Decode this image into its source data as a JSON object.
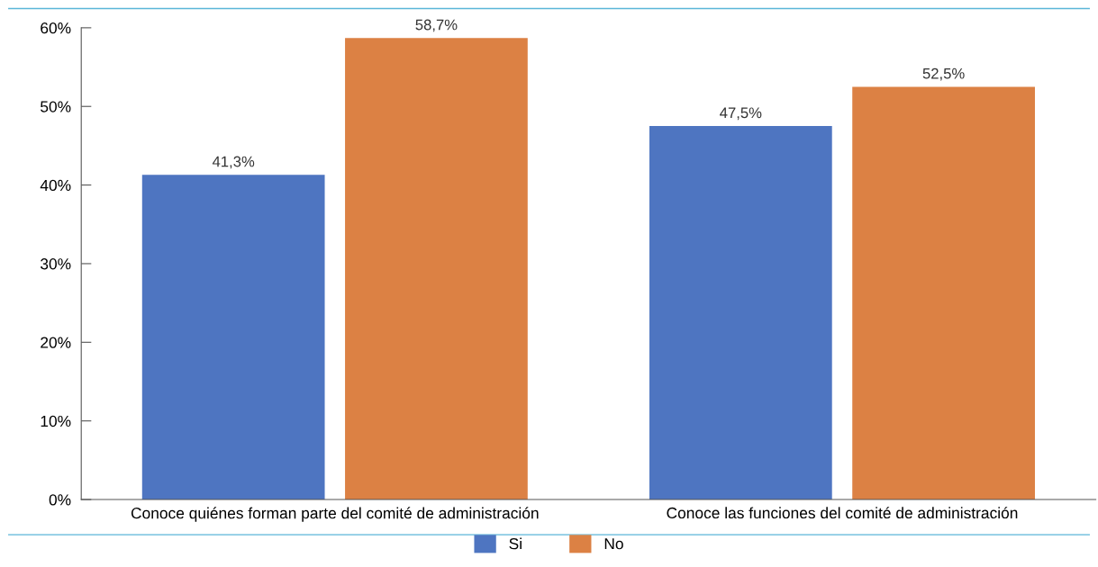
{
  "chart_data": {
    "type": "bar",
    "categories": [
      "Conoce quiénes forman parte del comité de administración",
      "Conoce las funciones del comité de administración"
    ],
    "series": [
      {
        "name": "Si",
        "color": "#4e75c1",
        "values": [
          41.3,
          47.5
        ],
        "value_labels": [
          "41,3%",
          "47,5%"
        ]
      },
      {
        "name": "No",
        "color": "#dc8144",
        "values": [
          58.7,
          52.5
        ],
        "value_labels": [
          "58,7%",
          "52,5%"
        ]
      }
    ],
    "ylim": [
      0,
      60
    ],
    "yticks": [
      {
        "value": 0,
        "label": "0%"
      },
      {
        "value": 10,
        "label": "10%"
      },
      {
        "value": 20,
        "label": "20%"
      },
      {
        "value": 30,
        "label": "30%"
      },
      {
        "value": 40,
        "label": "40%"
      },
      {
        "value": 50,
        "label": "50%"
      },
      {
        "value": 60,
        "label": "60%"
      }
    ],
    "grid": false,
    "legend": "bottom"
  }
}
